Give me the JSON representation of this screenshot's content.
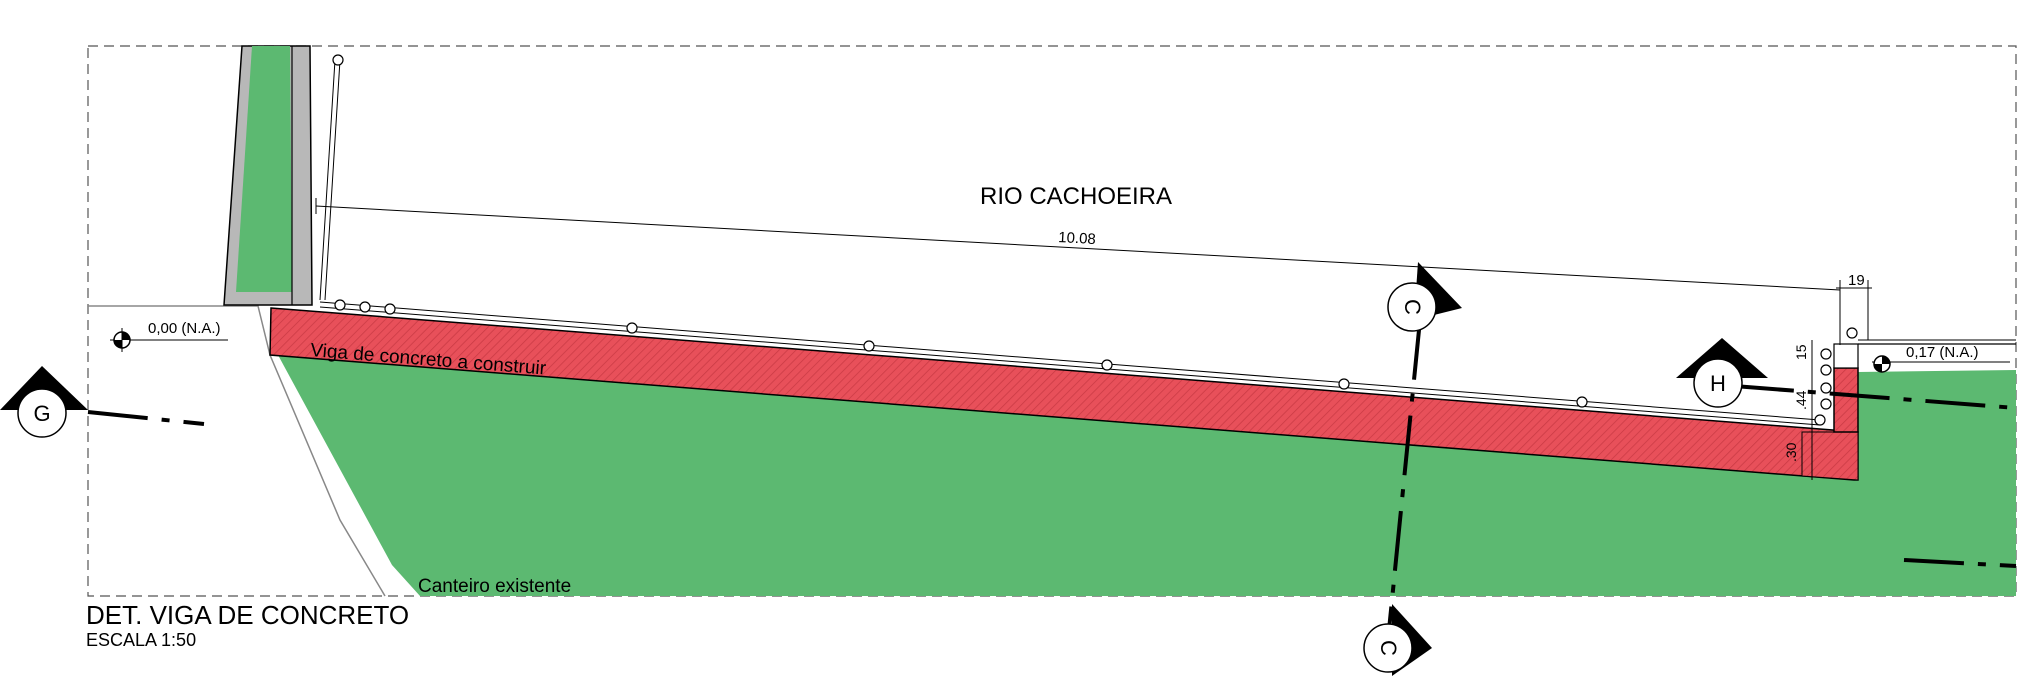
{
  "drawing": {
    "river_label": "RIO CACHOEIRA",
    "beam_label": "Viga de concreto a construir",
    "planter_label": "Canteiro existente",
    "level_left": "0,00 (N.A.)",
    "level_right": "0,17 (N.A.)",
    "dimensions": {
      "length": "10.08",
      "width_top": "19",
      "d15": "15",
      "d44": ".44",
      "d30": ".30"
    },
    "section_markers": {
      "g": "G",
      "h": "H",
      "c_top": "C",
      "c_bottom": "C"
    },
    "title": "DET.  VIGA DE CONCRETO",
    "scale": "ESCALA 1:50"
  },
  "colors": {
    "beam_red": "#e8505a",
    "planter_green": "#5cb971",
    "wall_gray": "#b8b8b8",
    "line_black": "#000000"
  }
}
